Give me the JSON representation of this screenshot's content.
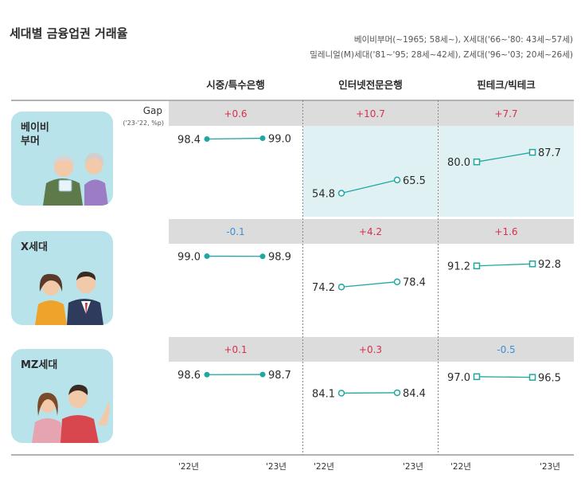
{
  "title": "세대별 금융업권 거래율",
  "legend": {
    "line1": "베이비부머(~1965; 58세~), X세대('66~'80: 43세~57세)",
    "line2": "밀레니얼(M)세대('81~'95; 28세~42세), Z세대('96~'03; 20세~26세)"
  },
  "gap_label": "Gap",
  "gap_sublabel": "('23-'22, %p)",
  "columns": [
    "시중/특수은행",
    "인터넷전문은행",
    "핀테크/빅테크"
  ],
  "generations": [
    {
      "name": "베이비\n부머",
      "label_line1": "베이비",
      "label_line2": "부머"
    },
    {
      "name": "X세대",
      "label_line1": "X세대",
      "label_line2": ""
    },
    {
      "name": "MZ세대",
      "label_line1": "MZ세대",
      "label_line2": ""
    }
  ],
  "axis": {
    "start": "'22년",
    "end": "'23년"
  },
  "colors": {
    "teal": "#1fa8a1",
    "gap_band": "#dcdcdc",
    "highlight": "#dff1f3",
    "positive": "#d6304d",
    "negative": "#3a8fd6",
    "card": "#b9e3ea"
  },
  "chart_data": {
    "type": "line",
    "x": [
      "'22년",
      "'23년"
    ],
    "categories": [
      "시중/특수은행",
      "인터넷전문은행",
      "핀테크/빅테크"
    ],
    "rows": [
      {
        "generation": "베이비부머",
        "cells": [
          {
            "v22": 98.4,
            "v23": 99.0,
            "gap": "+0.6"
          },
          {
            "v22": 54.8,
            "v23": 65.5,
            "gap": "+10.7"
          },
          {
            "v22": 80.0,
            "v23": 87.7,
            "gap": "+7.7"
          }
        ]
      },
      {
        "generation": "X세대",
        "cells": [
          {
            "v22": 99.0,
            "v23": 98.9,
            "gap": "-0.1"
          },
          {
            "v22": 74.2,
            "v23": 78.4,
            "gap": "+4.2"
          },
          {
            "v22": 91.2,
            "v23": 92.8,
            "gap": "+1.6"
          }
        ]
      },
      {
        "generation": "MZ세대",
        "cells": [
          {
            "v22": 98.6,
            "v23": 98.7,
            "gap": "+0.1"
          },
          {
            "v22": 84.1,
            "v23": 84.4,
            "gap": "+0.3"
          },
          {
            "v22": 97.0,
            "v23": 96.5,
            "gap": "-0.5"
          }
        ]
      }
    ],
    "marker_styles": [
      "filled-circle",
      "open-circle",
      "open-square"
    ],
    "highlight": {
      "generation": "베이비부머",
      "columns": [
        "인터넷전문은행",
        "핀테크/빅테크"
      ]
    }
  }
}
